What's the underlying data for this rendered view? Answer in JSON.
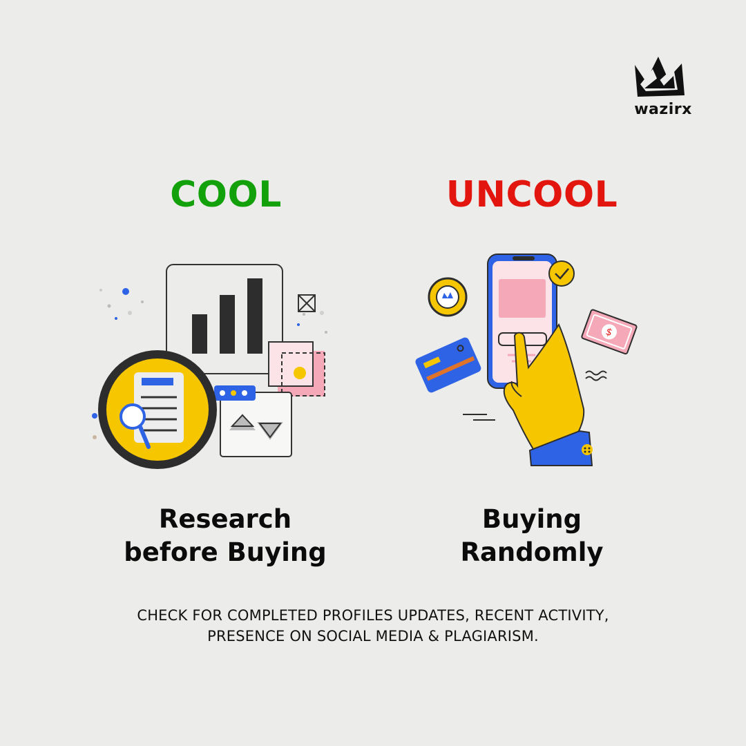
{
  "brand": {
    "logo_text": "wazirx"
  },
  "left": {
    "heading": "COOL",
    "heading_color": "#12a10a",
    "caption_line1": "Research",
    "caption_line2": "before Buying",
    "icon": "research-chart-magnifier-illustration"
  },
  "right": {
    "heading": "UNCOOL",
    "heading_color": "#e3150f",
    "caption_line1": "Buying",
    "caption_line2": "Randomly",
    "icon": "hand-phone-payment-illustration"
  },
  "footnote": {
    "line1": "CHECK FOR COMPLETED PROFILES UPDATES, RECENT ACTIVITY,",
    "line2": "PRESENCE ON SOCIAL MEDIA & PLAGIARISM."
  },
  "colors": {
    "background": "#ececea",
    "yellow": "#f6c600",
    "blue": "#2f63e6",
    "pink": "#f4a8b8"
  }
}
